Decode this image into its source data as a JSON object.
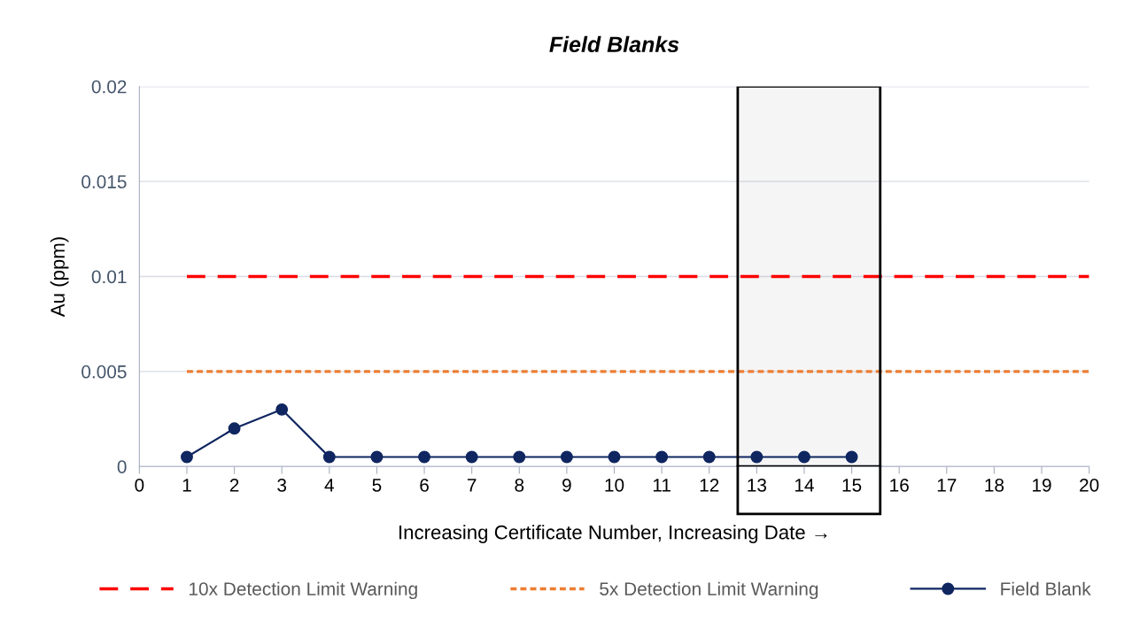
{
  "chart_data": {
    "type": "line",
    "title": "Field Blanks",
    "xlabel": "Increasing Certificate Number, Increasing Date →",
    "ylabel": "Au (ppm)",
    "series": [
      {
        "name": "10x Detection Limit Warning",
        "color": "#ff0000",
        "x": [
          1,
          20
        ],
        "values": [
          0.01,
          0.01
        ],
        "line_style": "dashed",
        "marker": "none"
      },
      {
        "name": "5x Detection Limit Warning",
        "color": "#ed7d31",
        "x": [
          1,
          20
        ],
        "values": [
          0.005,
          0.005
        ],
        "line_style": "dotted",
        "marker": "none"
      },
      {
        "name": "Field Blank",
        "color": "#0f2660",
        "x": [
          1,
          2,
          3,
          4,
          5,
          6,
          7,
          8,
          9,
          10,
          11,
          12,
          13,
          14,
          15
        ],
        "values": [
          0.0005,
          0.002,
          0.003,
          0.0005,
          0.0005,
          0.0005,
          0.0005,
          0.0005,
          0.0005,
          0.0005,
          0.0005,
          0.0005,
          0.0005,
          0.0005,
          0.0005
        ],
        "line_style": "solid",
        "marker": "circle"
      }
    ],
    "bands": [
      {
        "axis": "x",
        "from": 12.6,
        "to": 15.6,
        "color": "#000000"
      }
    ],
    "xlim": [
      0,
      20
    ],
    "xticks": [
      0,
      1,
      2,
      3,
      4,
      5,
      6,
      7,
      8,
      9,
      10,
      11,
      12,
      13,
      14,
      15,
      16,
      17,
      18,
      19,
      20
    ],
    "ylim": [
      0,
      0.02
    ],
    "yticks": [
      0,
      0.005,
      0.01,
      0.015,
      0.02
    ],
    "grid": "y",
    "legend": "bottom"
  }
}
